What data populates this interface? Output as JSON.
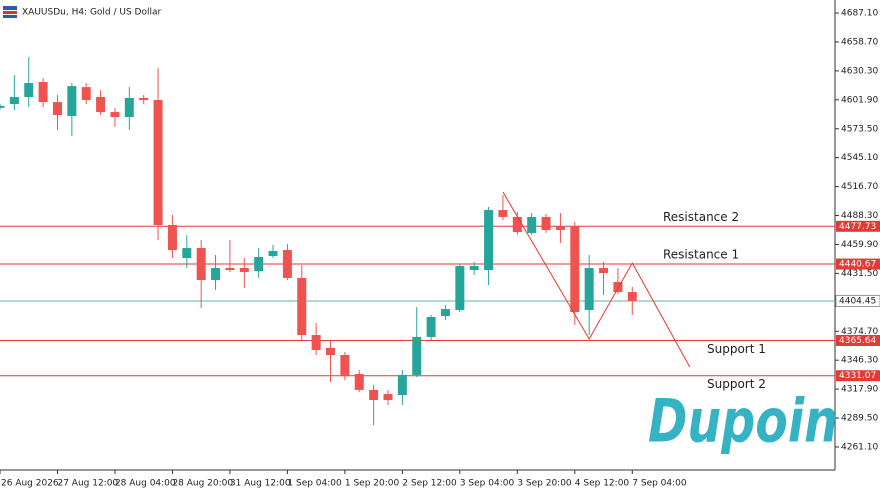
{
  "chart_data": {
    "type": "candlestick",
    "title": "XAUUSDu, H4:  Gold / US Dollar",
    "categories": [
      "26 Aug 2026",
      null,
      null,
      null,
      "27 Aug 12:00",
      null,
      null,
      null,
      "28 Aug 04:00",
      null,
      null,
      null,
      "28 Aug 20:00",
      null,
      null,
      null,
      "31 Aug 12:00",
      null,
      null,
      null,
      "1 Sep 04:00",
      null,
      null,
      null,
      "1 Sep 20:00",
      null,
      null,
      null,
      "2 Sep 12:00",
      null,
      null,
      null,
      "3 Sep 04:00",
      null,
      null,
      null,
      "3 Sep 20:00",
      null,
      null,
      null,
      "4 Sep 12:00",
      null,
      null,
      null,
      "7 Sep 04:00"
    ],
    "open": [
      4594,
      4597.8,
      4604.7,
      4619.4,
      4599.7,
      4586,
      4614.4,
      4604.7,
      4589.9,
      4585,
      4603.7,
      4601.7,
      4479,
      4446.6,
      4456.4,
      4425,
      4436.8,
      4436.8,
      4433.8,
      4448.6,
      4454.5,
      4427,
      4371,
      4358.3,
      4351.4,
      4332.8,
      4317.1,
      4313.1,
      4312.1,
      4331.8,
      4369.1,
      4389.7,
      4395.6,
      4434.8,
      4434.8,
      4493.7,
      4486.9,
      4471.2,
      4486.9,
      4478,
      4478,
      4395.6,
      4436.8,
      4423.1,
      4413.2
    ],
    "high": [
      4598,
      4626.2,
      4643.9,
      4623.3,
      4606.6,
      4618.4,
      4618.4,
      4611.5,
      4593.9,
      4614.4,
      4606.6,
      4633.1,
      4488.8,
      4469.2,
      4464.3,
      4449.6,
      4464.3,
      4446.6,
      4456.4,
      4459.4,
      4460.4,
      4439.7,
      4382.8,
      4366.1,
      4354.4,
      4336.7,
      4322,
      4317.1,
      4336.7,
      4398.5,
      4390.7,
      4400.5,
      4440.7,
      4442.7,
      4496.7,
      4508.5,
      4491.8,
      4490.8,
      4489.8,
      4490.8,
      4481.9,
      4449.6,
      4442.7,
      4436.8,
      4418.2
    ],
    "low": [
      4592,
      4591.9,
      4594.8,
      4594.8,
      4572.3,
      4566.4,
      4597.8,
      4587,
      4575.2,
      4572.3,
      4597.8,
      4464.3,
      4446.6,
      4436.8,
      4397.5,
      4415.2,
      4432.9,
      4417.2,
      4427,
      4446.6,
      4425,
      4366.1,
      4351.4,
      4324.9,
      4326.9,
      4315.1,
      4282.7,
      4302.3,
      4302.3,
      4329.8,
      4366.1,
      4385.8,
      4393.6,
      4429.9,
      4420.1,
      4483.9,
      4469.2,
      4469.2,
      4471.2,
      4461.3,
      4380.9,
      4371,
      4410.3,
      4411.3,
      4390.7
    ],
    "close": [
      4596,
      4604.7,
      4618.4,
      4599.7,
      4587,
      4615.4,
      4601.7,
      4589.9,
      4585,
      4603.7,
      4601.7,
      4479,
      4454.5,
      4456.4,
      4425,
      4436.8,
      4434.8,
      4432.9,
      4447.6,
      4453.5,
      4427,
      4371,
      4356.3,
      4351.4,
      4330.8,
      4317.1,
      4307.2,
      4307.2,
      4331.8,
      4369.1,
      4388.7,
      4396.5,
      4438.8,
      4438.8,
      4493.7,
      4486.9,
      4472.1,
      4486.9,
      4474.1,
      4474.1,
      4393.6,
      4436.8,
      4431.9,
      4413.2,
      4404.45
    ],
    "up_color": "#26a69a",
    "down_color": "#ef5350",
    "ylim": [
      4238.5,
      4699.9
    ],
    "yticks": [
      {
        "value": 4687.1,
        "label": "4687.10"
      },
      {
        "value": 4658.7,
        "label": "4658.70"
      },
      {
        "value": 4630.3,
        "label": "4630.30"
      },
      {
        "value": 4601.9,
        "label": "4601.90"
      },
      {
        "value": 4573.5,
        "label": "4573.50"
      },
      {
        "value": 4545.1,
        "label": "4545.10"
      },
      {
        "value": 4516.7,
        "label": "4516.70"
      },
      {
        "value": 4488.3,
        "label": "4488.30"
      },
      {
        "value": 4459.9,
        "label": "4459.90"
      },
      {
        "value": 4431.5,
        "label": "4431.50"
      },
      {
        "value": 4374.7,
        "label": "4374.70"
      },
      {
        "value": 4346.3,
        "label": "4346.30"
      },
      {
        "value": 4317.9,
        "label": "4317.90"
      },
      {
        "value": 4289.5,
        "label": "4289.50"
      },
      {
        "value": 4261.1,
        "label": "4261.10"
      }
    ],
    "current_price": 4404.45,
    "current_color": "#5fb3a9",
    "levels": [
      {
        "name": "Resistance 2",
        "value": 4477.73,
        "color": "#e53935"
      },
      {
        "name": "Resistance 1",
        "value": 4440.67,
        "color": "#e53935"
      },
      {
        "name": "Support 1",
        "value": 4365.64,
        "color": "#e53935"
      },
      {
        "name": "Support 2",
        "value": 4331.07,
        "color": "#e53935"
      }
    ],
    "projection": {
      "x": [
        35,
        41,
        44,
        48
      ],
      "y": [
        4511.4,
        4367.1,
        4441.7,
        4339.6
      ],
      "color": "#e53935"
    },
    "watermark": "Dupoin",
    "watermark_color": "#35b3c4"
  }
}
